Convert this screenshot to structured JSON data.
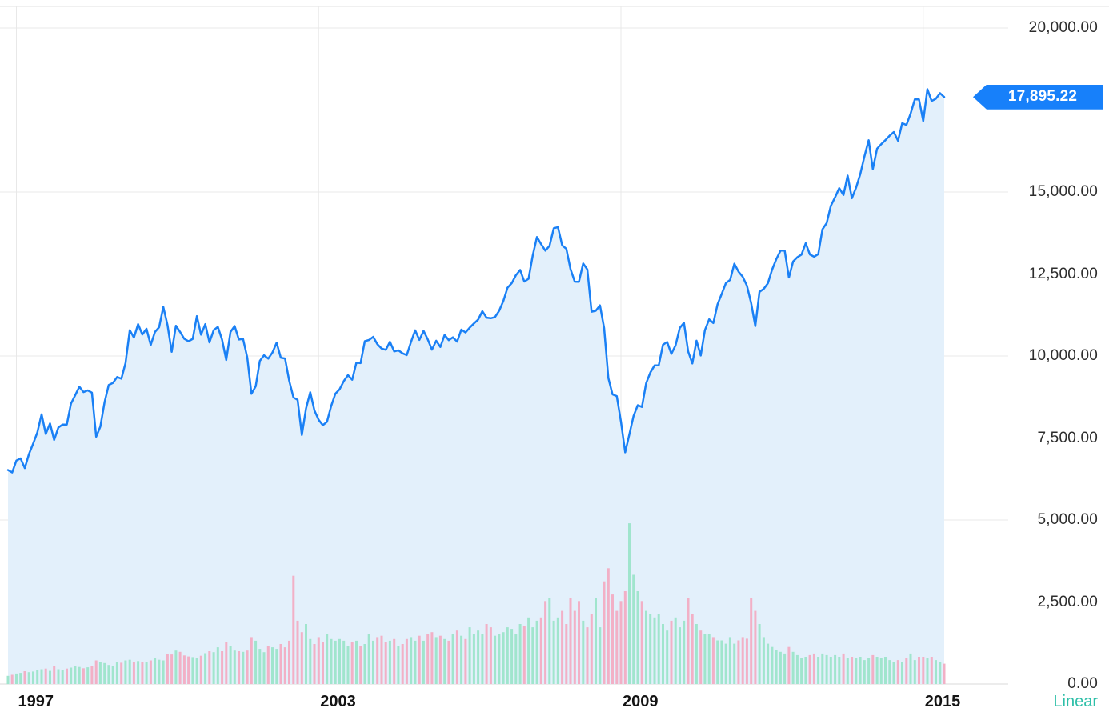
{
  "chart_data": {
    "type": "area",
    "title": "",
    "description": "Stock index price chart (monthly, Nov 1996 - mid 2015) with volume bars",
    "last_price_label": "17,895.22",
    "last_price_value": 17895.22,
    "scale_label": "Linear",
    "x_axis": {
      "tick_labels": [
        "1997",
        "2003",
        "2009",
        "2015"
      ],
      "tick_month_indices": [
        2,
        74,
        146,
        218
      ],
      "start": "1996-11",
      "end": "2015-06",
      "interval": "monthly"
    },
    "y_axis": {
      "side": "right",
      "min": 0,
      "max": 20000,
      "gridline_step": 2500,
      "tick_labels": [
        "20,000.00",
        "15,000.00",
        "12,500.00",
        "10,000.00",
        "7,500.00",
        "5,000.00",
        "2,500.00",
        "0.00"
      ],
      "tick_values": [
        20000,
        15000,
        12500,
        10000,
        7500,
        5000,
        2500,
        0
      ]
    },
    "grid": true,
    "legend": "none",
    "colors": {
      "line": "#1a80f5",
      "area_fill": "#e3f0fb",
      "price_tag_bg": "#1780fa",
      "price_tag_text": "#ffffff",
      "volume_up": "#a0e5cd",
      "volume_down": "#f2b0c6",
      "gridline": "#e8e8e8",
      "baseline": "#d8d8d8",
      "axis_text": "#2d2d2d",
      "x_axis_text": "#141414",
      "linear_text": "#2dbfa8",
      "background": "#ffffff"
    },
    "series": [
      {
        "name": "price",
        "type": "line-area",
        "values": [
          6521,
          6448,
          6813,
          6878,
          6584,
          7009,
          7331,
          7673,
          8223,
          7622,
          7945,
          7442,
          7823,
          7908,
          7907,
          8546,
          8800,
          9063,
          8900,
          8952,
          8883,
          7539,
          7843,
          8592,
          9117,
          9181,
          9359,
          9307,
          9786,
          10789,
          10560,
          10971,
          10655,
          10829,
          10337,
          10730,
          10878,
          11497,
          10941,
          10128,
          10922,
          10734,
          10522,
          10448,
          10522,
          11215,
          10651,
          10971,
          10414,
          10788,
          10887,
          10495,
          9879,
          10735,
          10912,
          10502,
          10523,
          9950,
          8848,
          9075,
          9852,
          10022,
          9920,
          10106,
          10404,
          9946,
          9925,
          9243,
          8737,
          8664,
          7592,
          8397,
          8896,
          8342,
          8054,
          7891,
          7992,
          8480,
          8850,
          8985,
          9234,
          9416,
          9275,
          9801,
          9782,
          10454,
          10488,
          10584,
          10358,
          10226,
          10188,
          10435,
          10140,
          10174,
          10080,
          10027,
          10428,
          10783,
          10490,
          10766,
          10504,
          10193,
          10467,
          10275,
          10641,
          10482,
          10569,
          10440,
          10806,
          10718,
          10865,
          10993,
          11109,
          11367,
          11168,
          11150,
          11186,
          11381,
          11679,
          12080,
          12222,
          12463,
          12622,
          12269,
          12354,
          13063,
          13628,
          13409,
          13212,
          13358,
          13896,
          13930,
          13372,
          13265,
          12650,
          12266,
          12263,
          12820,
          12638,
          11350,
          11378,
          11544,
          10851,
          9325,
          8829,
          8776,
          8001,
          7063,
          7609,
          8168,
          8500,
          8447,
          9172,
          9496,
          9712,
          9713,
          10345,
          10428,
          10067,
          10325,
          10857,
          11009,
          10137,
          9774,
          10466,
          10015,
          10788,
          11118,
          11006,
          11578,
          11892,
          12226,
          12320,
          12811,
          12570,
          12414,
          12143,
          11614,
          10913,
          11955,
          12046,
          12218,
          12633,
          12952,
          13212,
          13214,
          12393,
          12880,
          13009,
          13091,
          13437,
          13096,
          13026,
          13104,
          13861,
          14054,
          14579,
          14840,
          15116,
          14910,
          15500,
          14810,
          15130,
          15546,
          16086,
          16577,
          15699,
          16322,
          16458,
          16581,
          16717,
          16827,
          16563,
          17098,
          17043,
          17391,
          17828,
          17823,
          17165,
          18133,
          17776,
          17841,
          18011,
          17895.22
        ]
      },
      {
        "name": "volume",
        "type": "bar",
        "axis": "hidden",
        "unit": "price-axis-equivalent",
        "values": [
          250,
          280,
          320,
          340,
          390,
          360,
          380,
          420,
          450,
          470,
          400,
          540,
          450,
          420,
          470,
          500,
          540,
          520,
          480,
          510,
          550,
          720,
          660,
          640,
          580,
          560,
          670,
          650,
          720,
          740,
          660,
          700,
          680,
          660,
          720,
          780,
          740,
          720,
          920,
          900,
          1020,
          980,
          870,
          840,
          820,
          780,
          860,
          940,
          1000,
          970,
          1120,
          1000,
          1270,
          1170,
          1020,
          1000,
          980,
          1020,
          1430,
          1320,
          1070,
          970,
          1170,
          1120,
          1070,
          1220,
          1120,
          1320,
          3300,
          1930,
          1580,
          1830,
          1370,
          1220,
          1430,
          1270,
          1530,
          1370,
          1320,
          1370,
          1320,
          1170,
          1270,
          1320,
          1170,
          1220,
          1530,
          1320,
          1430,
          1470,
          1270,
          1320,
          1370,
          1170,
          1220,
          1370,
          1430,
          1320,
          1470,
          1320,
          1530,
          1580,
          1430,
          1470,
          1370,
          1320,
          1530,
          1630,
          1470,
          1370,
          1730,
          1530,
          1630,
          1530,
          1830,
          1730,
          1470,
          1530,
          1580,
          1730,
          1680,
          1530,
          1830,
          1780,
          2030,
          1730,
          1930,
          2030,
          2530,
          2630,
          1930,
          2030,
          2230,
          1830,
          2630,
          2230,
          2530,
          1930,
          1730,
          2130,
          2630,
          1730,
          3130,
          3530,
          2730,
          2230,
          2530,
          2830,
          4900,
          3330,
          2830,
          2530,
          2230,
          2130,
          2030,
          2130,
          1830,
          1630,
          1930,
          2030,
          1730,
          1930,
          2630,
          2130,
          1830,
          1630,
          1530,
          1530,
          1430,
          1330,
          1330,
          1230,
          1430,
          1230,
          1330,
          1430,
          1380,
          2630,
          2230,
          1830,
          1430,
          1230,
          1130,
          1030,
          980,
          930,
          1130,
          980,
          880,
          780,
          830,
          880,
          930,
          830,
          930,
          880,
          830,
          880,
          830,
          930,
          780,
          830,
          780,
          830,
          730,
          780,
          880,
          830,
          780,
          830,
          730,
          680,
          730,
          680,
          780,
          930,
          730,
          830,
          830,
          780,
          830,
          730,
          680,
          620
        ]
      }
    ]
  }
}
